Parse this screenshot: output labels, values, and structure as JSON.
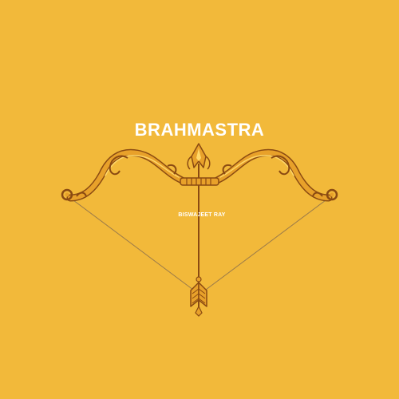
{
  "cover": {
    "title": "BRAHMASTRA",
    "author": "BISWAJEET RAY",
    "colors": {
      "background": "#f2b93a",
      "title_text": "#ffffff",
      "bow_gold": "#e8a12a",
      "bow_dark": "#8a4a12",
      "bow_highlight": "#ffd86a",
      "bowstring": "#9a7a4a",
      "arrow_shaft": "#8a4a12"
    },
    "icons": {
      "bow": "bow-icon",
      "arrow": "arrow-icon"
    }
  }
}
